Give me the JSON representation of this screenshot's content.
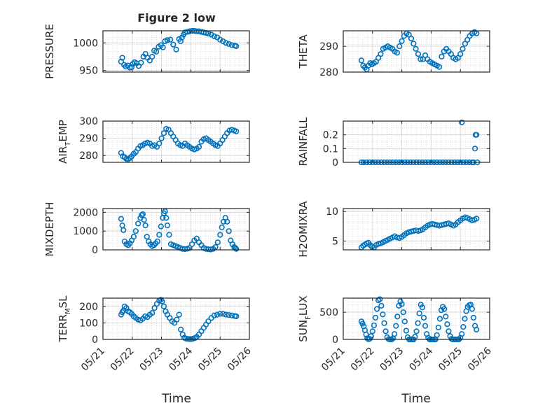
{
  "title": "Figure 2 low",
  "xlabel": "Time",
  "xticks": [
    "05/21",
    "05/22",
    "05/23",
    "05/24",
    "05/25",
    "05/26"
  ],
  "colors": {
    "marker": "#0072BD",
    "axis": "#262626",
    "grid": "#d9d9d9"
  },
  "chart_data": [
    {
      "type": "scatter",
      "name": "PRESSURE",
      "ylabel": "PRESSURE",
      "ylabel_parts": [
        "PRESSURE",
        "",
        ""
      ],
      "xlim": [
        0,
        5
      ],
      "ylim": [
        947,
        1022
      ],
      "yticks": [
        950,
        1000
      ],
      "yticklabels": [
        "950",
        "1000"
      ],
      "x": [
        0.62,
        0.66,
        0.72,
        0.78,
        0.85,
        0.92,
        0.98,
        1.02,
        1.08,
        1.15,
        1.22,
        1.3,
        1.38,
        1.45,
        1.52,
        1.6,
        1.68,
        1.75,
        1.82,
        1.9,
        1.98,
        2.05,
        2.12,
        2.2,
        2.3,
        2.4,
        2.5,
        2.6,
        2.65,
        2.7,
        2.75,
        2.8,
        2.88,
        2.96,
        3.04,
        3.12,
        3.2,
        3.28,
        3.36,
        3.44,
        3.52,
        3.6,
        3.7,
        3.8,
        3.9,
        4.0,
        4.1,
        4.2,
        4.3,
        4.4,
        4.5,
        4.55
      ],
      "y": [
        966,
        973,
        960,
        957,
        959,
        955,
        956,
        962,
        965,
        963,
        958,
        964,
        975,
        980,
        973,
        968,
        975,
        986,
        984,
        993,
        996,
        992,
        1003,
        1005,
        1006,
        997,
        988,
        1007,
        1003,
        1010,
        1015,
        1019,
        1020,
        1021,
        1022,
        1022,
        1021,
        1021,
        1020,
        1019,
        1018,
        1017,
        1015,
        1012,
        1010,
        1006,
        1003,
        1000,
        998,
        996,
        995,
        994
      ]
    },
    {
      "type": "scatter",
      "name": "THETA",
      "ylabel": "THETA",
      "ylabel_parts": [
        "THETA",
        "",
        ""
      ],
      "xlim": [
        0,
        5
      ],
      "ylim": [
        280,
        296
      ],
      "yticks": [
        280,
        290
      ],
      "yticklabels": [
        "280",
        "290"
      ],
      "x": [
        0.62,
        0.68,
        0.74,
        0.8,
        0.86,
        0.92,
        0.98,
        1.05,
        1.12,
        1.2,
        1.28,
        1.36,
        1.44,
        1.52,
        1.6,
        1.68,
        1.76,
        1.84,
        1.92,
        2.0,
        2.08,
        2.16,
        2.24,
        2.32,
        2.4,
        2.48,
        2.56,
        2.64,
        2.72,
        2.8,
        2.88,
        2.96,
        3.04,
        3.12,
        3.2,
        3.28,
        3.36,
        3.44,
        3.52,
        3.6,
        3.68,
        3.76,
        3.84,
        3.92,
        4.0,
        4.08,
        4.16,
        4.24,
        4.32,
        4.4,
        4.48,
        4.55
      ],
      "y": [
        284.5,
        282.5,
        281.8,
        281,
        282.5,
        283.5,
        283,
        283.5,
        284,
        285.5,
        287,
        289,
        289.5,
        290,
        289.5,
        289,
        288,
        287.5,
        290,
        292,
        294,
        295,
        294.5,
        293,
        291,
        289,
        287,
        285,
        285,
        286.5,
        285,
        284,
        283.5,
        283,
        282.5,
        282,
        286,
        288,
        289,
        288,
        287,
        285.5,
        285,
        285.5,
        287,
        289,
        291,
        292.5,
        294,
        295,
        295.5,
        295
      ]
    },
    {
      "type": "scatter",
      "name": "AIR_TEMP",
      "ylabel": "AIR_TEMP",
      "ylabel_parts": [
        "AIR",
        "T",
        "EMP"
      ],
      "xlim": [
        0,
        5
      ],
      "ylim": [
        276,
        300
      ],
      "yticks": [
        280,
        290,
        300
      ],
      "yticklabels": [
        "280",
        "290",
        "300"
      ],
      "x": [
        0.62,
        0.68,
        0.74,
        0.8,
        0.86,
        0.92,
        0.98,
        1.05,
        1.12,
        1.2,
        1.28,
        1.36,
        1.44,
        1.52,
        1.6,
        1.68,
        1.76,
        1.84,
        1.92,
        2.0,
        2.08,
        2.16,
        2.24,
        2.32,
        2.4,
        2.48,
        2.56,
        2.64,
        2.72,
        2.8,
        2.88,
        2.96,
        3.04,
        3.12,
        3.2,
        3.28,
        3.36,
        3.44,
        3.52,
        3.6,
        3.68,
        3.76,
        3.84,
        3.92,
        4.0,
        4.08,
        4.16,
        4.24,
        4.32,
        4.4,
        4.48,
        4.55
      ],
      "y": [
        281.5,
        279.5,
        279,
        278,
        277.8,
        278.5,
        279.5,
        281,
        282,
        284,
        285.5,
        286,
        287,
        287.5,
        287,
        285.5,
        286,
        285,
        287,
        290,
        293,
        295.5,
        295,
        293,
        291,
        289,
        287,
        286,
        285.5,
        287,
        286,
        285,
        284,
        283.5,
        284,
        285,
        288,
        289.5,
        290,
        289,
        288,
        287,
        286,
        285.5,
        287,
        289,
        291,
        293,
        294.5,
        295,
        294.5,
        294
      ]
    },
    {
      "type": "scatter",
      "name": "RAINFALL",
      "ylabel": "RAINFALL",
      "ylabel_parts": [
        "RAINFALL",
        "",
        ""
      ],
      "xlim": [
        0,
        5
      ],
      "ylim": [
        0,
        0.3
      ],
      "yticks": [
        0,
        0.1,
        0.2
      ],
      "yticklabels": [
        "0",
        "0.1",
        "0.2"
      ],
      "x": [
        0.62,
        0.7,
        0.8,
        0.9,
        1.0,
        1.1,
        1.2,
        1.3,
        1.4,
        1.5,
        1.6,
        1.7,
        1.8,
        1.9,
        2.0,
        2.1,
        2.2,
        2.3,
        2.4,
        2.5,
        2.6,
        2.7,
        2.8,
        2.9,
        3.0,
        3.1,
        3.2,
        3.3,
        3.4,
        3.5,
        3.6,
        3.7,
        3.8,
        3.9,
        4.0,
        4.1,
        4.2,
        4.3,
        4.4,
        4.45,
        4.5,
        4.52,
        4.55,
        4.58,
        4.05
      ],
      "y": [
        0,
        0,
        0,
        0,
        0,
        0,
        0,
        0,
        0,
        0,
        0,
        0,
        0,
        0,
        0,
        0,
        0,
        0,
        0,
        0,
        0,
        0,
        0,
        0,
        0,
        0,
        0,
        0,
        0,
        0,
        0,
        0,
        0,
        0,
        0,
        0,
        0,
        0,
        0,
        0,
        0.1,
        0.2,
        0.2,
        0,
        0.29
      ]
    },
    {
      "type": "scatter",
      "name": "MIXDEPTH",
      "ylabel": "MIXDEPTH",
      "ylabel_parts": [
        "MIXDEPTH",
        "",
        ""
      ],
      "xlim": [
        0,
        5
      ],
      "ylim": [
        0,
        2200
      ],
      "yticks": [
        0,
        1000,
        2000
      ],
      "yticklabels": [
        "0",
        "1000",
        "2000"
      ],
      "x": [
        0.62,
        0.66,
        0.7,
        0.74,
        0.8,
        0.86,
        0.92,
        0.98,
        1.05,
        1.12,
        1.2,
        1.28,
        1.32,
        1.36,
        1.4,
        1.45,
        1.5,
        1.56,
        1.62,
        1.68,
        1.74,
        1.8,
        1.86,
        1.92,
        1.98,
        2.04,
        2.08,
        2.12,
        2.16,
        2.2,
        2.26,
        2.32,
        2.4,
        2.48,
        2.56,
        2.64,
        2.72,
        2.8,
        2.88,
        2.96,
        3.04,
        3.12,
        3.2,
        3.28,
        3.36,
        3.44,
        3.52,
        3.6,
        3.68,
        3.76,
        3.84,
        3.92,
        4.0,
        4.06,
        4.12,
        4.18,
        4.24,
        4.3,
        4.36,
        4.42,
        4.48,
        4.52,
        4.55
      ],
      "y": [
        1650,
        1300,
        1050,
        450,
        300,
        250,
        350,
        500,
        700,
        1000,
        1400,
        1700,
        1850,
        1900,
        1600,
        1300,
        700,
        450,
        300,
        200,
        250,
        350,
        450,
        800,
        1250,
        1700,
        1950,
        2050,
        1700,
        1300,
        800,
        300,
        250,
        200,
        150,
        100,
        50,
        40,
        60,
        100,
        300,
        500,
        600,
        400,
        250,
        100,
        50,
        30,
        20,
        50,
        150,
        400,
        800,
        1200,
        1500,
        1700,
        1500,
        1000,
        500,
        300,
        150,
        100,
        50
      ]
    },
    {
      "type": "scatter",
      "name": "H2OMIXRA",
      "ylabel": "H2OMIXRA",
      "ylabel_parts": [
        "H2OMIXRA",
        "",
        ""
      ],
      "xlim": [
        0,
        5
      ],
      "ylim": [
        3.5,
        10.5
      ],
      "yticks": [
        5,
        10
      ],
      "yticklabels": [
        "5",
        "10"
      ],
      "x": [
        0.62,
        0.68,
        0.74,
        0.8,
        0.86,
        0.92,
        0.98,
        1.05,
        1.12,
        1.2,
        1.28,
        1.36,
        1.44,
        1.52,
        1.6,
        1.68,
        1.76,
        1.84,
        1.92,
        2.0,
        2.08,
        2.16,
        2.24,
        2.32,
        2.4,
        2.48,
        2.56,
        2.64,
        2.72,
        2.8,
        2.88,
        2.96,
        3.04,
        3.12,
        3.2,
        3.28,
        3.36,
        3.44,
        3.52,
        3.6,
        3.68,
        3.76,
        3.84,
        3.92,
        4.0,
        4.08,
        4.16,
        4.24,
        4.32,
        4.4,
        4.48,
        4.55
      ],
      "y": [
        3.9,
        4.2,
        4.4,
        4.6,
        4.7,
        4.3,
        4.0,
        3.9,
        4.3,
        4.5,
        4.6,
        4.8,
        5.0,
        5.2,
        5.4,
        5.6,
        5.8,
        5.6,
        5.5,
        5.7,
        6.0,
        6.3,
        6.5,
        6.6,
        6.7,
        6.8,
        6.7,
        6.8,
        7.0,
        7.3,
        7.6,
        7.8,
        7.9,
        7.8,
        7.7,
        7.6,
        7.7,
        7.8,
        7.9,
        8.0,
        7.8,
        7.6,
        7.8,
        8.2,
        8.5,
        8.8,
        9.0,
        8.9,
        8.7,
        8.5,
        8.6,
        8.8
      ]
    },
    {
      "type": "scatter",
      "name": "TERR_MSL",
      "ylabel": "TERR_MSL",
      "ylabel_parts": [
        "TERR",
        "M",
        "SL"
      ],
      "xlim": [
        0,
        5
      ],
      "ylim": [
        0,
        250
      ],
      "yticks": [
        0,
        100,
        200
      ],
      "yticklabels": [
        "0",
        "100",
        "200"
      ],
      "x": [
        0.62,
        0.66,
        0.7,
        0.74,
        0.8,
        0.86,
        0.92,
        0.98,
        1.05,
        1.12,
        1.2,
        1.28,
        1.36,
        1.44,
        1.52,
        1.6,
        1.68,
        1.76,
        1.84,
        1.92,
        1.98,
        2.02,
        2.08,
        2.14,
        2.2,
        2.28,
        2.36,
        2.44,
        2.52,
        2.6,
        2.66,
        2.72,
        2.78,
        2.84,
        2.9,
        2.96,
        3.02,
        3.08,
        3.14,
        3.2,
        3.28,
        3.36,
        3.44,
        3.52,
        3.6,
        3.7,
        3.8,
        3.9,
        4.0,
        4.1,
        4.2,
        4.3,
        4.4,
        4.5,
        4.55
      ],
      "y": [
        150,
        165,
        175,
        200,
        190,
        170,
        165,
        155,
        140,
        130,
        120,
        115,
        125,
        140,
        135,
        150,
        160,
        190,
        215,
        235,
        240,
        230,
        200,
        170,
        150,
        130,
        110,
        100,
        120,
        150,
        60,
        30,
        10,
        5,
        3,
        2,
        2,
        5,
        8,
        15,
        30,
        50,
        70,
        90,
        110,
        130,
        145,
        150,
        155,
        155,
        150,
        148,
        145,
        142,
        140
      ]
    },
    {
      "type": "scatter",
      "name": "SUN_FLUX",
      "ylabel": "SUN_FLUX",
      "ylabel_parts": [
        "SUN",
        "F",
        "LUX"
      ],
      "xlim": [
        0,
        5
      ],
      "ylim": [
        0,
        760
      ],
      "yticks": [
        0,
        500
      ],
      "yticklabels": [
        "0",
        "500"
      ],
      "x": [
        0.62,
        0.66,
        0.7,
        0.74,
        0.78,
        0.82,
        0.86,
        0.9,
        0.95,
        1.0,
        1.05,
        1.1,
        1.15,
        1.2,
        1.25,
        1.3,
        1.35,
        1.4,
        1.45,
        1.5,
        1.55,
        1.6,
        1.65,
        1.7,
        1.75,
        1.8,
        1.85,
        1.9,
        1.95,
        2.0,
        2.05,
        2.1,
        2.15,
        2.2,
        2.25,
        2.3,
        2.35,
        2.4,
        2.45,
        2.5,
        2.55,
        2.6,
        2.65,
        2.7,
        2.75,
        2.8,
        2.85,
        2.9,
        2.95,
        3.0,
        3.05,
        3.1,
        3.15,
        3.2,
        3.25,
        3.3,
        3.35,
        3.4,
        3.45,
        3.5,
        3.55,
        3.6,
        3.65,
        3.7,
        3.75,
        3.8,
        3.85,
        3.9,
        3.95,
        4.0,
        4.05,
        4.1,
        4.15,
        4.2,
        4.25,
        4.3,
        4.35,
        4.4,
        4.45,
        4.5,
        4.55
      ],
      "y": [
        330,
        290,
        240,
        170,
        90,
        20,
        5,
        10,
        60,
        150,
        260,
        400,
        560,
        720,
        740,
        620,
        460,
        300,
        150,
        40,
        5,
        0,
        0,
        20,
        100,
        250,
        420,
        620,
        700,
        650,
        500,
        330,
        160,
        40,
        0,
        0,
        0,
        0,
        50,
        150,
        300,
        480,
        640,
        590,
        400,
        250,
        100,
        30,
        0,
        0,
        0,
        0,
        0,
        80,
        220,
        380,
        540,
        600,
        560,
        420,
        280,
        150,
        60,
        10,
        0,
        0,
        0,
        0,
        0,
        30,
        100,
        230,
        380,
        520,
        600,
        630,
        640,
        560,
        400,
        250,
        180
      ]
    }
  ]
}
